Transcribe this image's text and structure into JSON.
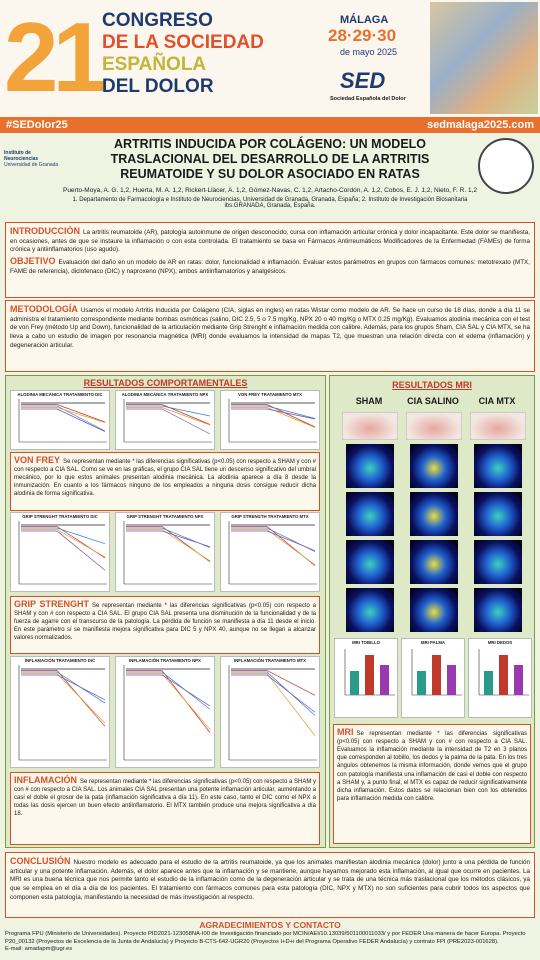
{
  "header": {
    "number": "21",
    "lines": [
      "CONGRESO",
      "DE LA SOCIEDAD",
      "ESPAÑOLA",
      "DEL DOLOR"
    ],
    "city": "MÁLAGA",
    "dates": "28·29·30",
    "month": "de mayo 2025",
    "logo": "SED",
    "logo_caption": "Sociedad Española del Dolor",
    "hashtag": "#SEDolor25",
    "website": "sedmalaga2025.com"
  },
  "institute": {
    "name": "Instituto de Neurociencias",
    "university": "Universidad de Granada"
  },
  "title": "ARTRITIS INDUCIDA POR COLÁGENO: UN MODELO TRASLACIONAL DEL DESARROLLO DE LA ARTRITIS REUMATOIDE Y SU DOLOR ASOCIADO EN RATAS",
  "authors": "Puerto-Moya, A. G. 1,2, Huerta, M. A. 1,2, Rickert-Llàcer, A. 1,2, Gómez-Navas, C. 1,2, Artacho-Cordón, A. 1,2, Cobos, E. J. 1,2, Nieto, F. R. 1,2",
  "affiliations": "1. Departamento de Farmacología e Instituto de Neurociencias, Universidad de Granada, Granada, España; 2. Instituto de Investigación Biosanitaria ibs.GRANADA, Granada, España.",
  "sections": {
    "intro": {
      "label": "INTRODUCCIÓN",
      "text": "La artritis reumatoide (AR), patología autoinmune de origen desconocido, cursa con inflamación articular crónica y dolor incapacitante. Este dolor se manifiesta, en ocasiones, antes de que se instaure la inflamación o con esta controlada. El tratamiento se basa en Fármacos Antirreumáticos Modificadores de la Enfermedad (FAMEs) de forma crónica y antiinflamatorios (uso agudo)."
    },
    "objective": {
      "label": "OBJETIVO",
      "text": "Evaluación del daño en un modelo de AR en ratas: dolor, funcionalidad e inflamación. Evaluar estos parámetros en grupos con fármacos comunes: metotrexato (MTX, FAME de referencia), diclofenaco (DIC) y naproxeno (NPX), ambos antiinflamatorios y analgésicos."
    },
    "methods": {
      "label": "METODOLOGÍA",
      "text": "Usamos el modelo Artritis Inducida por Colágeno (CIA, siglas en ingles) en ratas Wistar como modelo de AR. Se hace un curso de 18 días, donde a día 11 se administra el tratamiento correspondiente mediante bombas osmóticas (salino, DIC 2.5, 5 o 7.5 mg/Kg, NPX 20 o 40 mg/Kg o MTX 0.25 mg/Kg). Evaluamos alodinia mecánica con el test de von Frey (método Up and Down), funcionalidad de la articulación mediante Grip Strenght e inflamación medida con calibre. Además, para los grupos Sham, CIA SAL y CIA MTX, se ha lleva a cabo un estudio de imagen por resonancia magnética (MRI) donde evaluamos la intensidad de mapas T2, que muestran una relación directa con el edema (inflamación) y degeneración articular."
    },
    "behavior": {
      "heading": "RESULTADOS COMPORTAMENTALES",
      "groups": [
        {
          "charts": [
            "ALODINIA MECÁNICA TRATAMIENTO DIC",
            "ALODINIA MECÁNICA TRATAMIENTO NPX",
            "VON FREY TRATAMIENTO MTX"
          ],
          "label": "VON FREY",
          "text": "Se representan mediante * las diferencias significativas (p<0.05) con respecto a SHAM y con # con respecto a CIA SAL. Como se ve en las gráficas, el grupo CIA SAL tiene un descenso significativo del umbral mecánico, por lo que estos animales presentan alodinia mecánica. La alodinia aparece a día 8 desde la inmunización. En cuanto a los fármacos ninguno de los empleados a ninguna dosis consigue reducir dicha alodinia de forma significativa."
        },
        {
          "charts": [
            "GRIP STRENGHT TRATAMIENTO DIC",
            "GRIP STRENGHT TRATAMIENTO NPX",
            "GRIP STRENGTH TRATAMIENTO MTX"
          ],
          "label": "GRIP STRENGHT",
          "text": "Se representan mediante * las diferencias significativas (p<0.05) con respecto a SHAM y con # con respecto a CIA SAL. El grupo CIA SAL presenta una disminución de la funcionalidad y de la fuerza de agarre con el transcurso de la patología. La pérdida de función se manifiesta a día 11 desde el inicio. En este parámetro sí se manifiesta mejora significativa para DIC 5 y NPX 40, aunque no se llegan a alcanzar valores normalizados."
        },
        {
          "charts": [
            "INFLAMACIÓN TRATAMIENTO DIC",
            "INFLAMACIÓN TRATAMIENTO NPX",
            "INFLAMACIÓN TRATAMIENTO MTX"
          ],
          "label": "INFLAMACIÓN",
          "text": "Se representan mediante * las diferencias significativas (p<0.05) con respecto a SHAM y con # con respecto a CIA SAL. Los animales CIA SAL presentan una potente inflamación articular, aumentando a casi el doble el grosor de la pata (inflamación significativa a día 11). En este caso, tanto el DIC como el NPX a todas las dosis ejercen un buen efecto antiinflamatorio. El MTX también produce una mejora significativa a día 18."
        }
      ]
    },
    "mri": {
      "heading": "RESULTADOS MRI",
      "columns": [
        "SHAM",
        "CIA SALINO",
        "CIA MTX"
      ],
      "charts": [
        "MRI TOBILLO",
        "MRI PALMA",
        "MRI DEDOS"
      ],
      "label": "MRI",
      "text": "Se representan mediante * las diferencias significativas (p<0.05) con respecto a SHAM y con # con respecto a CIA SAL. Evaluamos la inflamación mediante la intensidad de T2 en 3 planos que corresponden al tobillo, los dedos y la palma de la pata. En los tres ángulos obtenemos la misma información, donde vemos que el grupo con patología manifiesta una inflamación de casi el doble con respecto a SHAM y, a punto final, el MTX es capaz de reducir significativamente dicha inflamación. Estos datos se relacionan bien con los obtenidos para inflamación medida con calibre."
    },
    "conclusion": {
      "label": "CONCLUSIÓN",
      "text": "Nuestro modelo es adecuado para el estudio de la artritis reumatoide, ya que los animales manifiestan alodinia mecánica (dolor) junto a una pérdida de función articular y una potente inflamación. Además, el dolor aparece antes que la inflamación y se mantiene, aunque hayamos mejorado esta inflamación, al igual que ocurre en pacientes. La MRI es una buena técnica que nos permite tanto el estudio de la inflamación como de la degeneración articular y se trata de una técnica más traslacional que los métodos clásicos, ya que se emplea en el día a día de los pacientes. El tratamiento con fármacos comunes para esta patología (DIC, NPX y MTX) no son suficientes para cubrir todos los aspectos que componen esta patología, manifestando la necesidad de más investigación al respecto."
    },
    "acknowledgments": {
      "heading": "AGRADECIMIENTOS Y CONTACTO",
      "text": "Programa FPU (Ministerio de Universidades). Proyecto PID2021-123058NA-I00 de Investigación financiado por MCIN/AEI/10.13039/501100011033/ y por FEDER Una manera de hacer Europa. Proyecto P20_00132 (Proyectos de Excelencia de la Junta de Andalucía) y Proyecto B-CTS-642-UGR20 (Proyectos I+D+i del Programa Operativo FEDER Andalucía) y contrato FPI (PRE2023-001628).",
      "email": "E-mail: amadapm@ugr.es"
    }
  }
}
